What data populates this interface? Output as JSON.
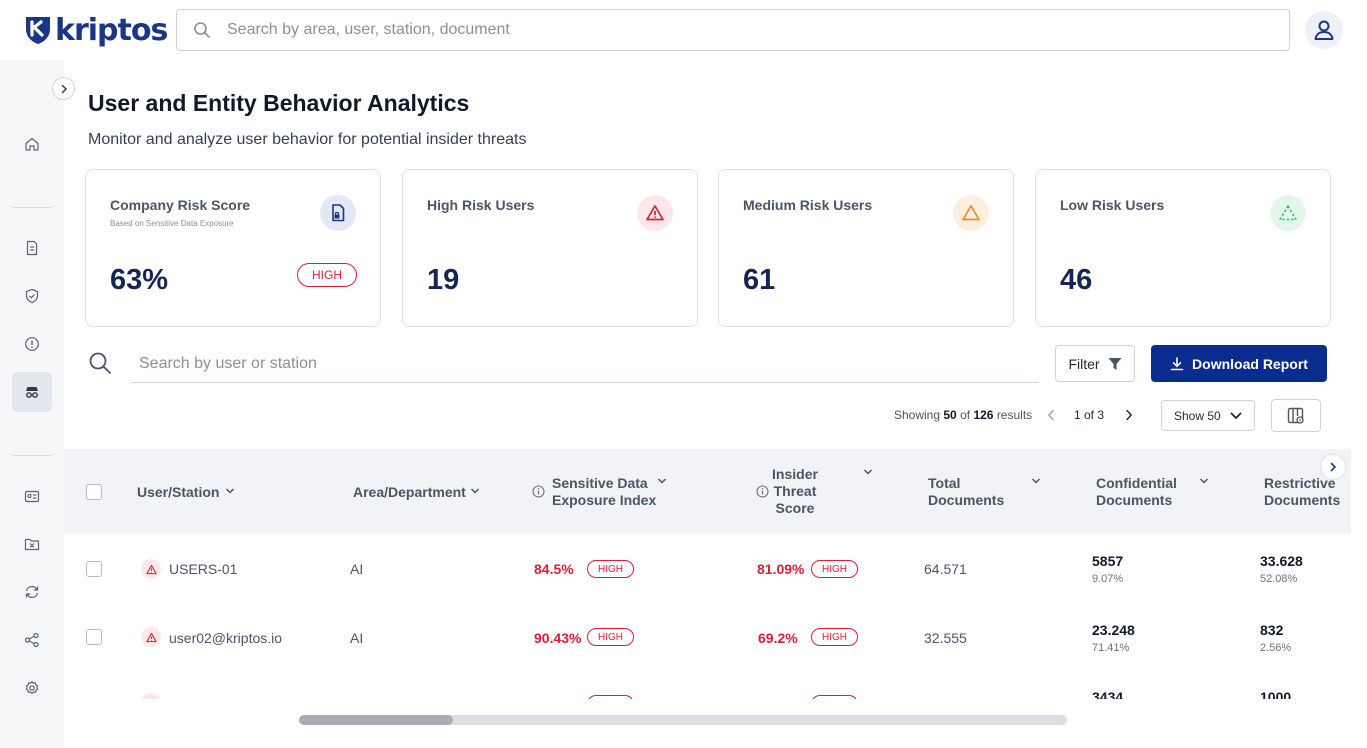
{
  "app": {
    "name": "kriptos",
    "brand_color": "#1c3687",
    "accent_color": "#0b2c8f",
    "danger_color": "#d81e3a"
  },
  "header": {
    "search_placeholder": "Search by area, user, station, document"
  },
  "sidebar": {
    "items": [
      {
        "icon": "home-icon"
      },
      {
        "icon": "document-icon"
      },
      {
        "icon": "shield-icon"
      },
      {
        "icon": "alert-circle-icon"
      },
      {
        "icon": "spy-icon",
        "active": true
      },
      {
        "icon": "id-card-icon"
      },
      {
        "icon": "folder-icon"
      },
      {
        "icon": "sync-icon"
      },
      {
        "icon": "share-icon"
      },
      {
        "icon": "gear-icon"
      }
    ]
  },
  "page": {
    "title": "User and Entity Behavior Analytics",
    "subtitle": "Monitor and analyze user behavior for potential insider threats"
  },
  "cards": {
    "company": {
      "title": "Company Risk Score",
      "subtitle": "Based on Sensitive Data Exposure",
      "value": "63%",
      "badge": "HIGH"
    },
    "high": {
      "title": "High Risk Users",
      "value": "19"
    },
    "medium": {
      "title": "Medium Risk Users",
      "value": "61"
    },
    "low": {
      "title": "Low Risk Users",
      "value": "46"
    }
  },
  "toolbar": {
    "search_placeholder": "Search by user or station",
    "filter_label": "Filter",
    "download_label": "Download Report"
  },
  "pagination": {
    "showing_prefix": "Showing",
    "shown": "50",
    "of_word": "of",
    "total": "126",
    "results_word": "results",
    "page_label": "1 of 3",
    "page_size_label": "Show 50"
  },
  "table": {
    "headers": {
      "user": "User/Station",
      "area": "Area/Department",
      "sdei": "Sensitive Data Exposure Index",
      "its": "Insider Threat Score",
      "total": "Total Documents",
      "confidential": "Confidential Documents",
      "restrictive": "Restrictive Documents"
    },
    "rows": [
      {
        "user": "USERS-01",
        "area": "AI",
        "sdei": "84.5%",
        "sdei_level": "HIGH",
        "its": "81.09%",
        "its_level": "HIGH",
        "total": "64.571",
        "confidential": "5857",
        "confidential_pct": "9.07%",
        "restrictive": "33.628",
        "restrictive_pct": "52.08%"
      },
      {
        "user": "user02@kriptos.io",
        "area": "AI",
        "sdei": "90.43%",
        "sdei_level": "HIGH",
        "its": "69.2%",
        "its_level": "HIGH",
        "total": "32.555",
        "confidential": "23.248",
        "confidential_pct": "71.41%",
        "restrictive": "832",
        "restrictive_pct": "2.56%"
      },
      {
        "confidential": "3434",
        "restrictive": "1000"
      }
    ]
  }
}
